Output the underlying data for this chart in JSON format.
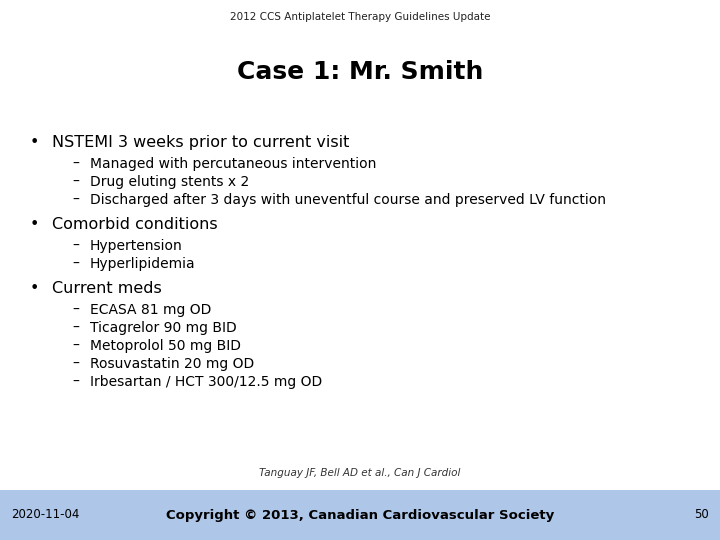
{
  "header": "2012 CCS Antiplatelet Therapy Guidelines Update",
  "title": "Case 1: Mr. Smith",
  "bullet1": "NSTEMI 3 weeks prior to current visit",
  "sub1": [
    "Managed with percutaneous intervention",
    "Drug eluting stents x 2",
    "Discharged after 3 days with uneventful course and preserved LV function"
  ],
  "bullet2": "Comorbid conditions",
  "sub2": [
    "Hypertension",
    "Hyperlipidemia"
  ],
  "bullet3": "Current meds",
  "sub3": [
    "ECASA 81 mg OD",
    "Ticagrelor 90 mg BID",
    "Metoprolol 50 mg BID",
    "Rosuvastatin 20 mg OD",
    "Irbesartan / HCT 300/12.5 mg OD"
  ],
  "footer_ref": "Tanguay JF, Bell AD et al., Can J Cardiol",
  "footer_date": "2020-11-04",
  "footer_copy": "Copyright © 2013, Canadian Cardiovascular Society",
  "footer_page": "50",
  "bg_color": "#ffffff",
  "footer_bg": "#aec6e8",
  "header_fontsize": 7.5,
  "title_fontsize": 18,
  "bullet_fontsize": 11.5,
  "sub_fontsize": 10.0,
  "footer_fontsize": 8.5
}
